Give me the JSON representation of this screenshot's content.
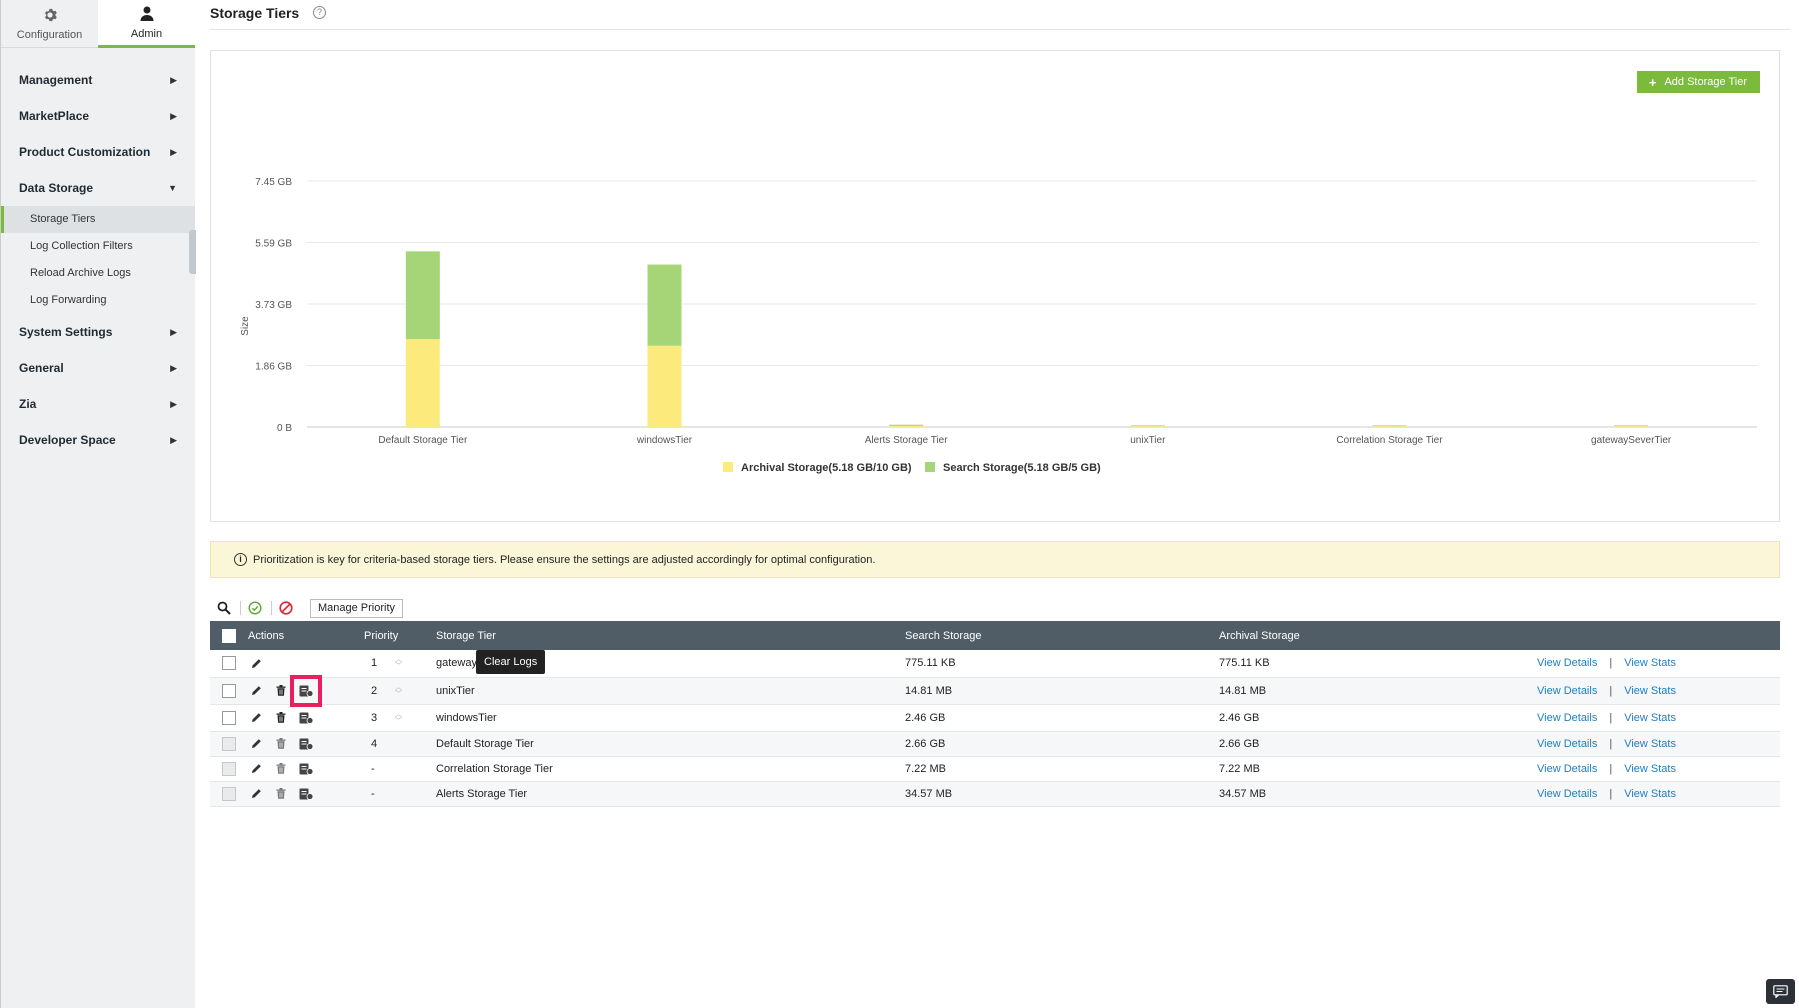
{
  "sidebar": {
    "tabs": [
      {
        "label": "Configuration",
        "icon": "gear-icon",
        "active": false
      },
      {
        "label": "Admin",
        "icon": "user-icon",
        "active": true
      }
    ],
    "nav": {
      "management": "Management",
      "marketplace": "MarketPlace",
      "product_customization": "Product Customization",
      "data_storage": "Data Storage",
      "storage_tiers": "Storage Tiers",
      "log_collection_filters": "Log Collection Filters",
      "reload_archive_logs": "Reload Archive Logs",
      "log_forwarding": "Log Forwarding",
      "system_settings": "System Settings",
      "general": "General",
      "zia": "Zia",
      "developer_space": "Developer Space"
    }
  },
  "header": {
    "title": "Storage Tiers"
  },
  "add_button": "Add Storage Tier",
  "chart_data": {
    "type": "bar",
    "stacked": true,
    "categories": [
      "Default Storage Tier",
      "windowsTier",
      "Alerts Storage Tier",
      "unixTier",
      "Correlation Storage Tier",
      "gatewaySeverTier"
    ],
    "series": [
      {
        "name": "Archival Storage(5.18 GB/10 GB)",
        "color": "#fdea7d",
        "values": [
          2.66,
          2.46,
          0.03457,
          0.01481,
          0.00722,
          0.000775
        ]
      },
      {
        "name": "Search Storage(5.18 GB/5 GB)",
        "color": "#a6d578",
        "values": [
          2.66,
          2.46,
          0.03457,
          0.01481,
          0.00722,
          0.000775
        ]
      }
    ],
    "yticks": [
      "0 B",
      "1.86 GB",
      "3.73 GB",
      "5.59 GB",
      "7.45 GB"
    ],
    "ylim": [
      0,
      7.45
    ],
    "ylabel": "Size",
    "xlabel": "",
    "grid": true,
    "legend": "bottom-center"
  },
  "notice": {
    "text": "Prioritization is key for criteria-based storage tiers. Please ensure the settings are adjusted accordingly for optimal configuration."
  },
  "toolbar": {
    "manage_priority": "Manage Priority"
  },
  "table": {
    "headers": {
      "actions": "Actions",
      "priority": "Priority",
      "tier": "Storage Tier",
      "search": "Search Storage",
      "archival": "Archival Storage"
    },
    "view_details": "View Details",
    "view_stats": "View Stats",
    "separator": "|",
    "rows": [
      {
        "priority": "1",
        "editable": true,
        "tier": "gatewaySeverTier",
        "search": "775.11 KB",
        "archival": "775.11 KB"
      },
      {
        "priority": "2",
        "editable": true,
        "tier": "unixTier",
        "search": "14.81 MB",
        "archival": "14.81 MB"
      },
      {
        "priority": "3",
        "editable": true,
        "tier": "windowsTier",
        "search": "2.46 GB",
        "archival": "2.46 GB"
      },
      {
        "priority": "4",
        "editable": false,
        "tier": "Default Storage Tier",
        "search": "2.66 GB",
        "archival": "2.66 GB"
      },
      {
        "priority": "-",
        "editable": false,
        "tier": "Correlation Storage Tier",
        "search": "7.22 MB",
        "archival": "7.22 MB"
      },
      {
        "priority": "-",
        "editable": false,
        "tier": "Alerts Storage Tier",
        "search": "34.57 MB",
        "archival": "34.57 MB"
      }
    ]
  },
  "tooltip": "Clear Logs"
}
